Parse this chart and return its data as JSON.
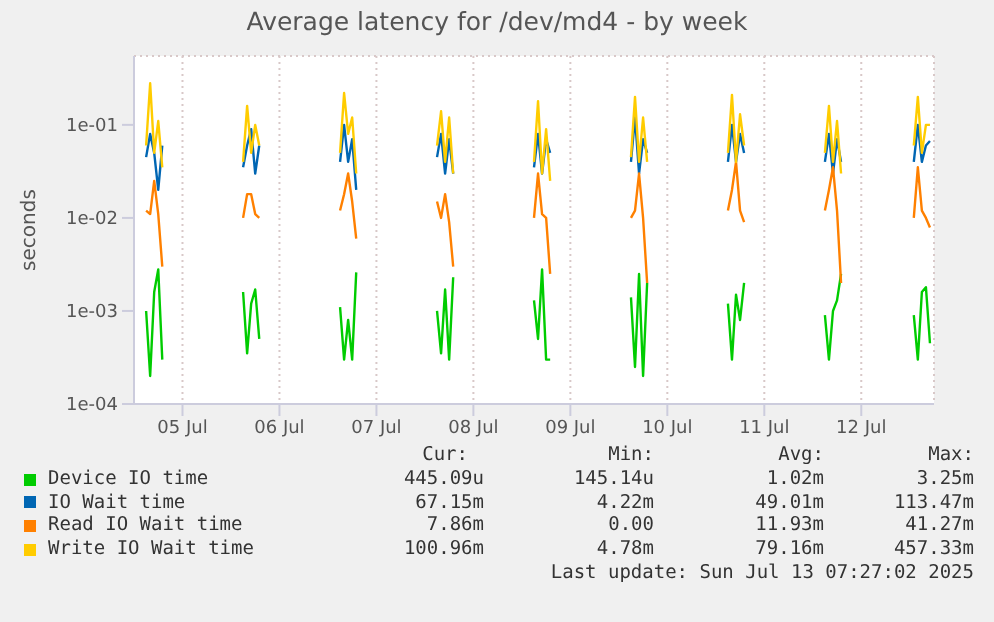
{
  "chart_data": {
    "type": "line",
    "title": "Average latency for /dev/md4 - by week",
    "ylabel": "seconds",
    "log": "y",
    "grid": true,
    "legend": "bottom",
    "marker": "none",
    "x": [
      "2025-07-05T03:00",
      "2025-07-05T04:00",
      "2025-07-05T05:00",
      "2025-07-05T06:00",
      "2025-07-05T07:00",
      "2025-07-05T12:00",
      "2025-07-06T03:00",
      "2025-07-06T04:00",
      "2025-07-06T05:00",
      "2025-07-06T06:00",
      "2025-07-06T07:00",
      "2025-07-06T12:00",
      "2025-07-07T03:00",
      "2025-07-07T04:00",
      "2025-07-07T05:00",
      "2025-07-07T06:00",
      "2025-07-07T07:00",
      "2025-07-07T12:00",
      "2025-07-08T03:00",
      "2025-07-08T04:00",
      "2025-07-08T05:00",
      "2025-07-08T06:00",
      "2025-07-08T07:00",
      "2025-07-08T12:00",
      "2025-07-09T03:00",
      "2025-07-09T04:00",
      "2025-07-09T05:00",
      "2025-07-09T06:00",
      "2025-07-09T07:00",
      "2025-07-09T12:00",
      "2025-07-10T03:00",
      "2025-07-10T04:00",
      "2025-07-10T05:00",
      "2025-07-10T06:00",
      "2025-07-10T07:00",
      "2025-07-10T12:00",
      "2025-07-11T03:00",
      "2025-07-11T04:00",
      "2025-07-11T05:00",
      "2025-07-11T06:00",
      "2025-07-11T07:00",
      "2025-07-11T12:00",
      "2025-07-12T03:00",
      "2025-07-12T04:00",
      "2025-07-12T05:00",
      "2025-07-12T06:00",
      "2025-07-12T07:00",
      "2025-07-12T12:00",
      "2025-07-13T01:00",
      "2025-07-13T02:00",
      "2025-07-13T03:00",
      "2025-07-13T04:00",
      "2025-07-13T05:00"
    ],
    "xlim": [
      "2025-07-05T00:00",
      "2025-07-13T06:00"
    ],
    "xticks": [
      {
        "value": "2025-07-05T12:00",
        "label": "05 Jul"
      },
      {
        "value": "2025-07-06T12:00",
        "label": "06 Jul"
      },
      {
        "value": "2025-07-07T12:00",
        "label": "07 Jul"
      },
      {
        "value": "2025-07-08T12:00",
        "label": "08 Jul"
      },
      {
        "value": "2025-07-09T12:00",
        "label": "09 Jul"
      },
      {
        "value": "2025-07-10T12:00",
        "label": "10 Jul"
      },
      {
        "value": "2025-07-11T12:00",
        "label": "11 Jul"
      },
      {
        "value": "2025-07-12T12:00",
        "label": "12 Jul"
      }
    ],
    "ylim": [
      0.0001,
      0.55
    ],
    "yticks": [
      {
        "value": 0.0001,
        "label": "1e-04"
      },
      {
        "value": 0.001,
        "label": "1e-03"
      },
      {
        "value": 0.01,
        "label": "1e-02"
      },
      {
        "value": 0.1,
        "label": "1e-01"
      }
    ],
    "series": [
      {
        "name": "Device IO time",
        "color": "#00cc00",
        "values": [
          0.001,
          0.0002,
          0.0016,
          0.0028,
          0.0003,
          null,
          0.0016,
          0.00035,
          0.0012,
          0.0017,
          0.0005,
          null,
          0.0011,
          0.0003,
          0.0008,
          0.0003,
          0.0026,
          null,
          0.001,
          0.00035,
          0.0017,
          0.0003,
          0.0023,
          null,
          0.0013,
          0.0005,
          0.0028,
          0.0003,
          0.0003,
          null,
          0.0014,
          0.00025,
          0.0025,
          0.0002,
          0.002,
          null,
          0.0012,
          0.0003,
          0.0015,
          0.0008,
          0.002,
          null,
          0.0009,
          0.0003,
          0.001,
          0.0013,
          0.0025,
          null,
          0.0009,
          0.0003,
          0.0016,
          0.0018,
          0.00045
        ]
      },
      {
        "name": "IO Wait time",
        "color": "#0066b3",
        "values": [
          0.045,
          0.08,
          0.05,
          0.02,
          0.06,
          null,
          0.035,
          0.06,
          0.09,
          0.03,
          0.06,
          null,
          0.04,
          0.1,
          0.04,
          0.07,
          0.02,
          null,
          0.045,
          0.08,
          0.03,
          0.07,
          0.03,
          null,
          0.035,
          0.08,
          0.03,
          0.07,
          0.05,
          null,
          0.04,
          0.12,
          0.03,
          0.07,
          0.05,
          null,
          0.04,
          0.1,
          0.04,
          0.08,
          0.05,
          null,
          0.04,
          0.08,
          0.03,
          0.07,
          0.04,
          null,
          0.04,
          0.1,
          0.04,
          0.06,
          0.067
        ]
      },
      {
        "name": "Read IO Wait time",
        "color": "#ff8000",
        "values": [
          0.012,
          0.011,
          0.025,
          0.011,
          0.003,
          null,
          0.01,
          0.018,
          0.018,
          0.011,
          0.01,
          null,
          0.012,
          0.018,
          0.03,
          0.015,
          0.006,
          null,
          0.015,
          0.01,
          0.018,
          0.009,
          0.003,
          null,
          0.01,
          0.03,
          0.011,
          0.01,
          0.0025,
          null,
          0.01,
          0.012,
          0.03,
          0.01,
          0.002,
          null,
          0.012,
          0.02,
          0.04,
          0.012,
          0.009,
          null,
          0.012,
          0.02,
          0.035,
          0.012,
          0.002,
          null,
          0.01,
          0.035,
          0.012,
          0.01,
          0.0079
        ]
      },
      {
        "name": "Write IO Wait time",
        "color": "#ffcc00",
        "values": [
          0.06,
          0.28,
          0.05,
          0.11,
          0.035,
          null,
          0.04,
          0.16,
          0.05,
          0.1,
          0.06,
          null,
          0.05,
          0.22,
          0.08,
          0.12,
          0.03,
          null,
          0.06,
          0.14,
          0.04,
          0.12,
          0.03,
          null,
          0.04,
          0.18,
          0.03,
          0.09,
          0.025,
          null,
          0.045,
          0.2,
          0.04,
          0.12,
          0.04,
          null,
          0.05,
          0.21,
          0.04,
          0.13,
          0.06,
          null,
          0.05,
          0.16,
          0.04,
          0.11,
          0.03,
          null,
          0.06,
          0.2,
          0.05,
          0.1,
          0.1
        ]
      }
    ],
    "annotations": [
      "Cur:",
      "Min:",
      "Avg:",
      "Max:",
      "445.09u",
      "145.14u",
      "1.02m",
      "3.25m",
      "67.15m",
      "4.22m",
      "49.01m",
      "113.47m",
      "7.86m",
      "0.00",
      "11.93m",
      "41.27m",
      "100.96m",
      "4.78m",
      "79.16m",
      "457.33m",
      "Last update: Sun Jul 13 07:27:02 2025"
    ]
  }
}
